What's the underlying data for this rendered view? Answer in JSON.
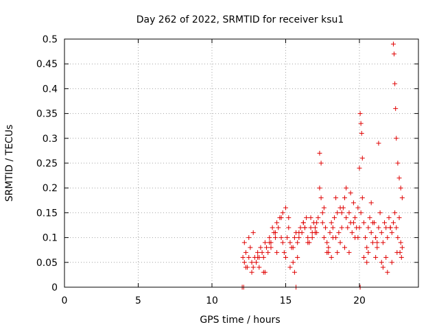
{
  "chart_data": {
    "type": "scatter",
    "title": "Day 262 of 2022, SRMTID for receiver ksu1",
    "xlabel": "GPS time / hours",
    "ylabel": "SRMTID / TECUs",
    "xlim": [
      0,
      24
    ],
    "ylim": [
      0,
      0.5
    ],
    "xticks": [
      0,
      5,
      10,
      15,
      20
    ],
    "xtick_labels": [
      "0",
      "5",
      "10",
      "15",
      "20"
    ],
    "yticks": [
      0,
      0.05,
      0.1,
      0.15,
      0.2,
      0.25,
      0.3,
      0.35,
      0.4,
      0.45,
      0.5
    ],
    "ytick_labels": [
      "0",
      "0.05",
      "0.1",
      "0.15",
      "0.2",
      "0.25",
      "0.3",
      "0.35",
      "0.4",
      "0.45",
      "0.5"
    ],
    "grid": true,
    "marker": "+",
    "color": "#e00000",
    "series": [
      {
        "name": "SRMTID",
        "x": [
          12.05,
          12.15,
          15.7,
          20.05,
          12.1,
          12.2,
          12.3,
          12.4,
          12.5,
          12.6,
          12.7,
          12.8,
          12.9,
          13.0,
          13.1,
          13.2,
          13.3,
          13.4,
          13.5,
          13.6,
          13.7,
          13.8,
          13.9,
          14.0,
          14.1,
          14.2,
          14.3,
          14.4,
          14.5,
          14.6,
          14.7,
          14.8,
          14.9,
          15.0,
          15.1,
          15.2,
          15.3,
          15.4,
          15.5,
          15.6,
          15.7,
          15.8,
          15.9,
          16.0,
          16.1,
          16.2,
          16.3,
          16.4,
          16.5,
          16.6,
          16.7,
          16.8,
          16.9,
          17.0,
          17.1,
          17.2,
          17.3,
          17.4,
          17.5,
          17.6,
          17.7,
          17.8,
          17.9,
          18.0,
          18.1,
          18.2,
          18.3,
          18.4,
          18.5,
          18.6,
          18.7,
          18.8,
          18.9,
          19.0,
          19.1,
          19.2,
          19.3,
          19.4,
          19.5,
          19.6,
          19.7,
          19.8,
          19.9,
          20.0,
          20.1,
          20.2,
          20.3,
          20.4,
          20.5,
          20.6,
          20.7,
          20.8,
          20.9,
          21.0,
          21.1,
          21.2,
          21.3,
          21.4,
          21.5,
          21.6,
          21.7,
          21.8,
          21.9,
          22.0,
          22.1,
          22.2,
          22.3,
          22.4,
          22.5,
          22.6,
          22.7,
          22.8,
          22.9,
          12.2,
          12.5,
          12.8,
          13.2,
          13.6,
          14.0,
          14.4,
          14.7,
          15.0,
          15.3,
          15.6,
          15.9,
          16.2,
          16.5,
          16.8,
          17.1,
          17.3,
          17.4,
          17.6,
          17.9,
          18.2,
          18.5,
          18.8,
          19.1,
          19.4,
          19.7,
          20.0,
          20.05,
          20.1,
          20.15,
          20.2,
          20.5,
          20.8,
          21.1,
          21.3,
          21.6,
          21.9,
          22.1,
          22.3,
          22.35,
          22.4,
          22.45,
          22.5,
          22.6,
          22.7,
          22.8,
          22.9,
          12.3,
          12.7,
          13.1,
          13.5,
          13.9,
          14.3,
          14.8,
          15.2,
          15.5,
          15.8,
          16.3,
          16.7,
          17.0,
          17.5,
          17.8,
          18.1,
          18.4,
          18.7,
          19.0,
          19.3,
          19.6,
          19.9,
          20.3,
          20.6,
          20.9,
          21.2,
          21.5,
          21.8,
          22.2,
          22.55,
          22.75,
          22.85
        ],
        "y": [
          0.0,
          0.0,
          0.0,
          0.0,
          0.06,
          0.05,
          0.07,
          0.04,
          0.06,
          0.08,
          0.05,
          0.04,
          0.06,
          0.05,
          0.07,
          0.06,
          0.08,
          0.07,
          0.06,
          0.09,
          0.08,
          0.07,
          0.1,
          0.09,
          0.12,
          0.11,
          0.1,
          0.13,
          0.12,
          0.14,
          0.1,
          0.09,
          0.07,
          0.06,
          0.1,
          0.12,
          0.09,
          0.08,
          0.05,
          0.1,
          0.11,
          0.09,
          0.1,
          0.12,
          0.11,
          0.13,
          0.12,
          0.14,
          0.1,
          0.09,
          0.12,
          0.11,
          0.13,
          0.12,
          0.11,
          0.14,
          0.2,
          0.18,
          0.13,
          0.1,
          0.12,
          0.09,
          0.08,
          0.11,
          0.13,
          0.12,
          0.14,
          0.1,
          0.15,
          0.11,
          0.09,
          0.12,
          0.16,
          0.18,
          0.14,
          0.12,
          0.15,
          0.13,
          0.11,
          0.17,
          0.14,
          0.12,
          0.16,
          0.12,
          0.15,
          0.18,
          0.13,
          0.1,
          0.08,
          0.12,
          0.14,
          0.11,
          0.09,
          0.13,
          0.1,
          0.08,
          0.12,
          0.15,
          0.11,
          0.09,
          0.13,
          0.12,
          0.1,
          0.14,
          0.12,
          0.11,
          0.13,
          0.15,
          0.12,
          0.1,
          0.14,
          0.09,
          0.08,
          0.09,
          0.1,
          0.11,
          0.04,
          0.03,
          0.08,
          0.07,
          0.14,
          0.16,
          0.04,
          0.03,
          0.11,
          0.13,
          0.09,
          0.1,
          0.13,
          0.27,
          0.25,
          0.16,
          0.07,
          0.1,
          0.07,
          0.15,
          0.2,
          0.19,
          0.1,
          0.24,
          0.35,
          0.33,
          0.31,
          0.26,
          0.05,
          0.17,
          0.06,
          0.29,
          0.04,
          0.03,
          0.12,
          0.49,
          0.47,
          0.41,
          0.36,
          0.3,
          0.25,
          0.22,
          0.2,
          0.18,
          0.04,
          0.03,
          0.06,
          0.03,
          0.09,
          0.11,
          0.15,
          0.14,
          0.08,
          0.06,
          0.12,
          0.14,
          0.11,
          0.15,
          0.07,
          0.06,
          0.18,
          0.16,
          0.08,
          0.07,
          0.13,
          0.1,
          0.06,
          0.07,
          0.13,
          0.09,
          0.05,
          0.06,
          0.05,
          0.07,
          0.07,
          0.06
        ]
      }
    ]
  }
}
